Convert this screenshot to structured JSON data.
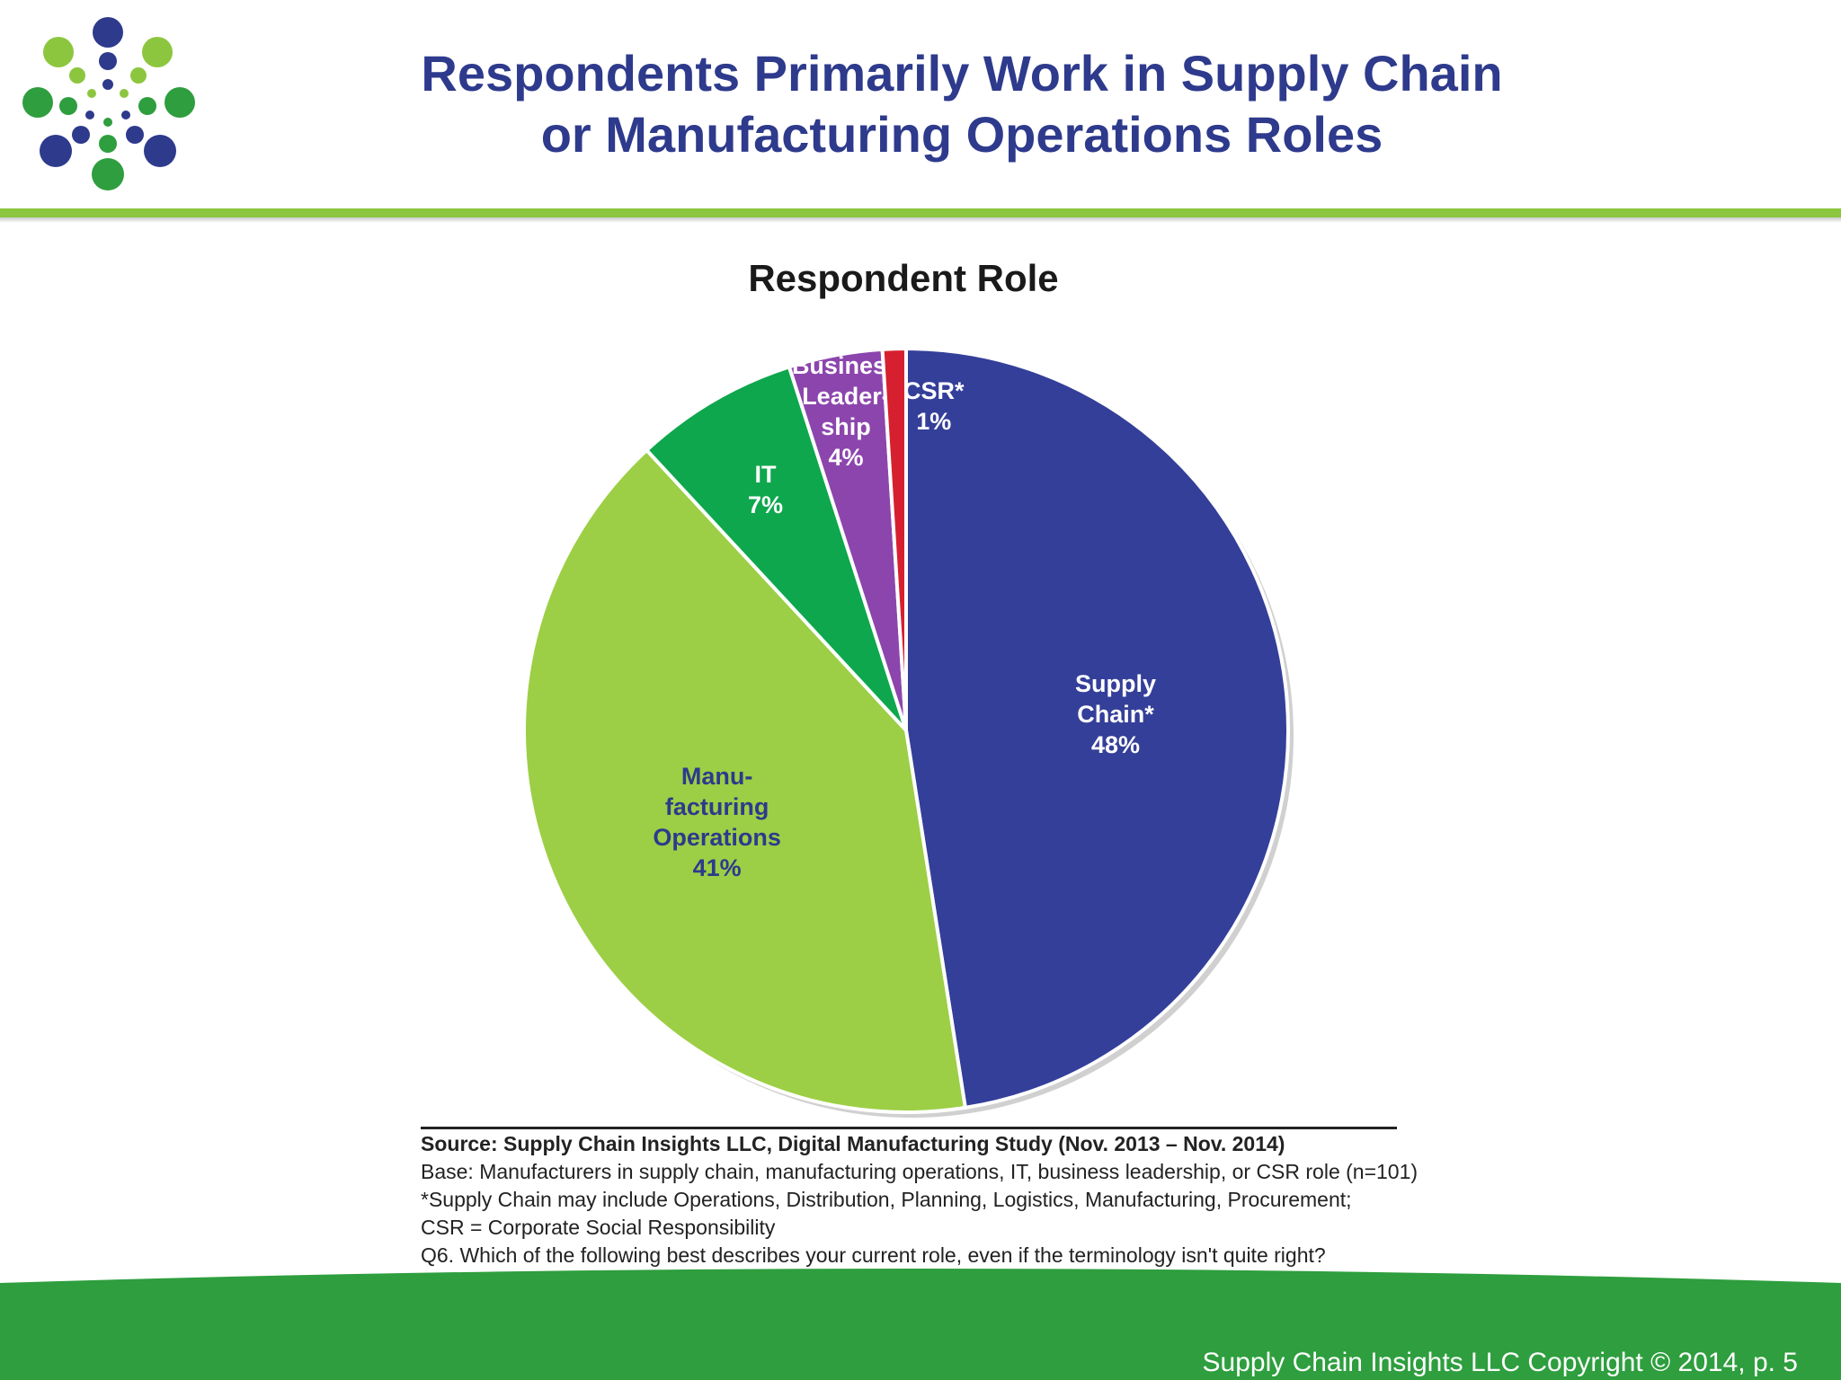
{
  "slide": {
    "title_line1": "Respondents Primarily Work in Supply Chain",
    "title_line2": "or Manufacturing Operations Roles",
    "copyright": "Supply Chain Insights LLC Copyright © 2014, p. 5"
  },
  "colors": {
    "title_blue": "#2e3a8c",
    "accent_green": "#8cc63f",
    "footer_green": "#2e9e3e"
  },
  "chart_data": {
    "type": "pie",
    "title": "Respondent Role",
    "slices": [
      {
        "label_lines": [
          "Supply",
          "Chain*",
          "48%"
        ],
        "value": 48,
        "color": "#343f99",
        "text_color": "#ffffff"
      },
      {
        "label_lines": [
          "Manu-",
          "facturing",
          "Operations",
          "41%"
        ],
        "value": 41,
        "color": "#9ccf45",
        "text_color": "#2e3a8c"
      },
      {
        "label_lines": [
          "IT",
          "7%"
        ],
        "value": 7,
        "color": "#0ea74d",
        "text_color": "#ffffff"
      },
      {
        "label_lines": [
          "Business",
          "Leader-",
          "ship",
          "4%"
        ],
        "value": 4,
        "color": "#8c45ad",
        "text_color": "#ffffff"
      },
      {
        "label_lines": [
          "CSR*",
          "1%"
        ],
        "value": 1,
        "color": "#d7202f",
        "text_color": "#ffffff"
      }
    ]
  },
  "notes": {
    "source": "Source:  Supply Chain Insights LLC, Digital Manufacturing Study (Nov. 2013 – Nov. 2014)",
    "base": "Base: Manufacturers in supply chain, manufacturing operations, IT, business leadership, or CSR role (n=101)",
    "footnote": "*Supply Chain may include Operations, Distribution, Planning, Logistics, Manufacturing, Procurement;",
    "csr": "CSR = Corporate Social Responsibility",
    "question": "Q6. Which of the following best describes your current role, even if the terminology isn't quite right?"
  }
}
